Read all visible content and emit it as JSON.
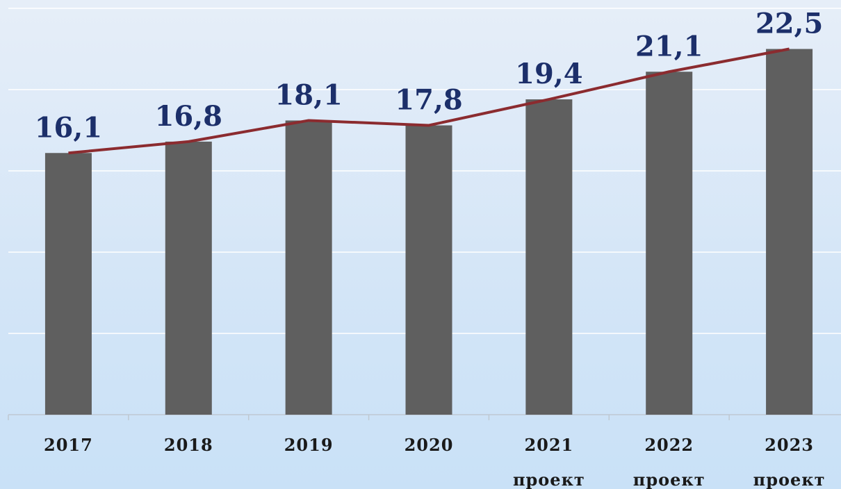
{
  "chart_data": {
    "type": "bar",
    "categories": [
      "2017",
      "2018",
      "2019",
      "2020",
      "2021 проект",
      "2022 проект",
      "2023 проект"
    ],
    "series": [
      {
        "type": "bar",
        "color": "#5f5f5f",
        "values": [
          16.1,
          16.8,
          18.1,
          17.8,
          19.4,
          21.1,
          22.5
        ],
        "value_labels": [
          "16,1",
          "16,8",
          "18,1",
          "17,8",
          "19,4",
          "21,1",
          "22,5"
        ]
      },
      {
        "type": "line",
        "color": "#8b2b2f",
        "values": [
          16.1,
          16.8,
          18.1,
          17.8,
          19.4,
          21.1,
          22.5
        ]
      }
    ],
    "ylim": [
      0,
      25
    ],
    "yticks": [
      0,
      5,
      10,
      15,
      20,
      25
    ],
    "grid": true
  }
}
